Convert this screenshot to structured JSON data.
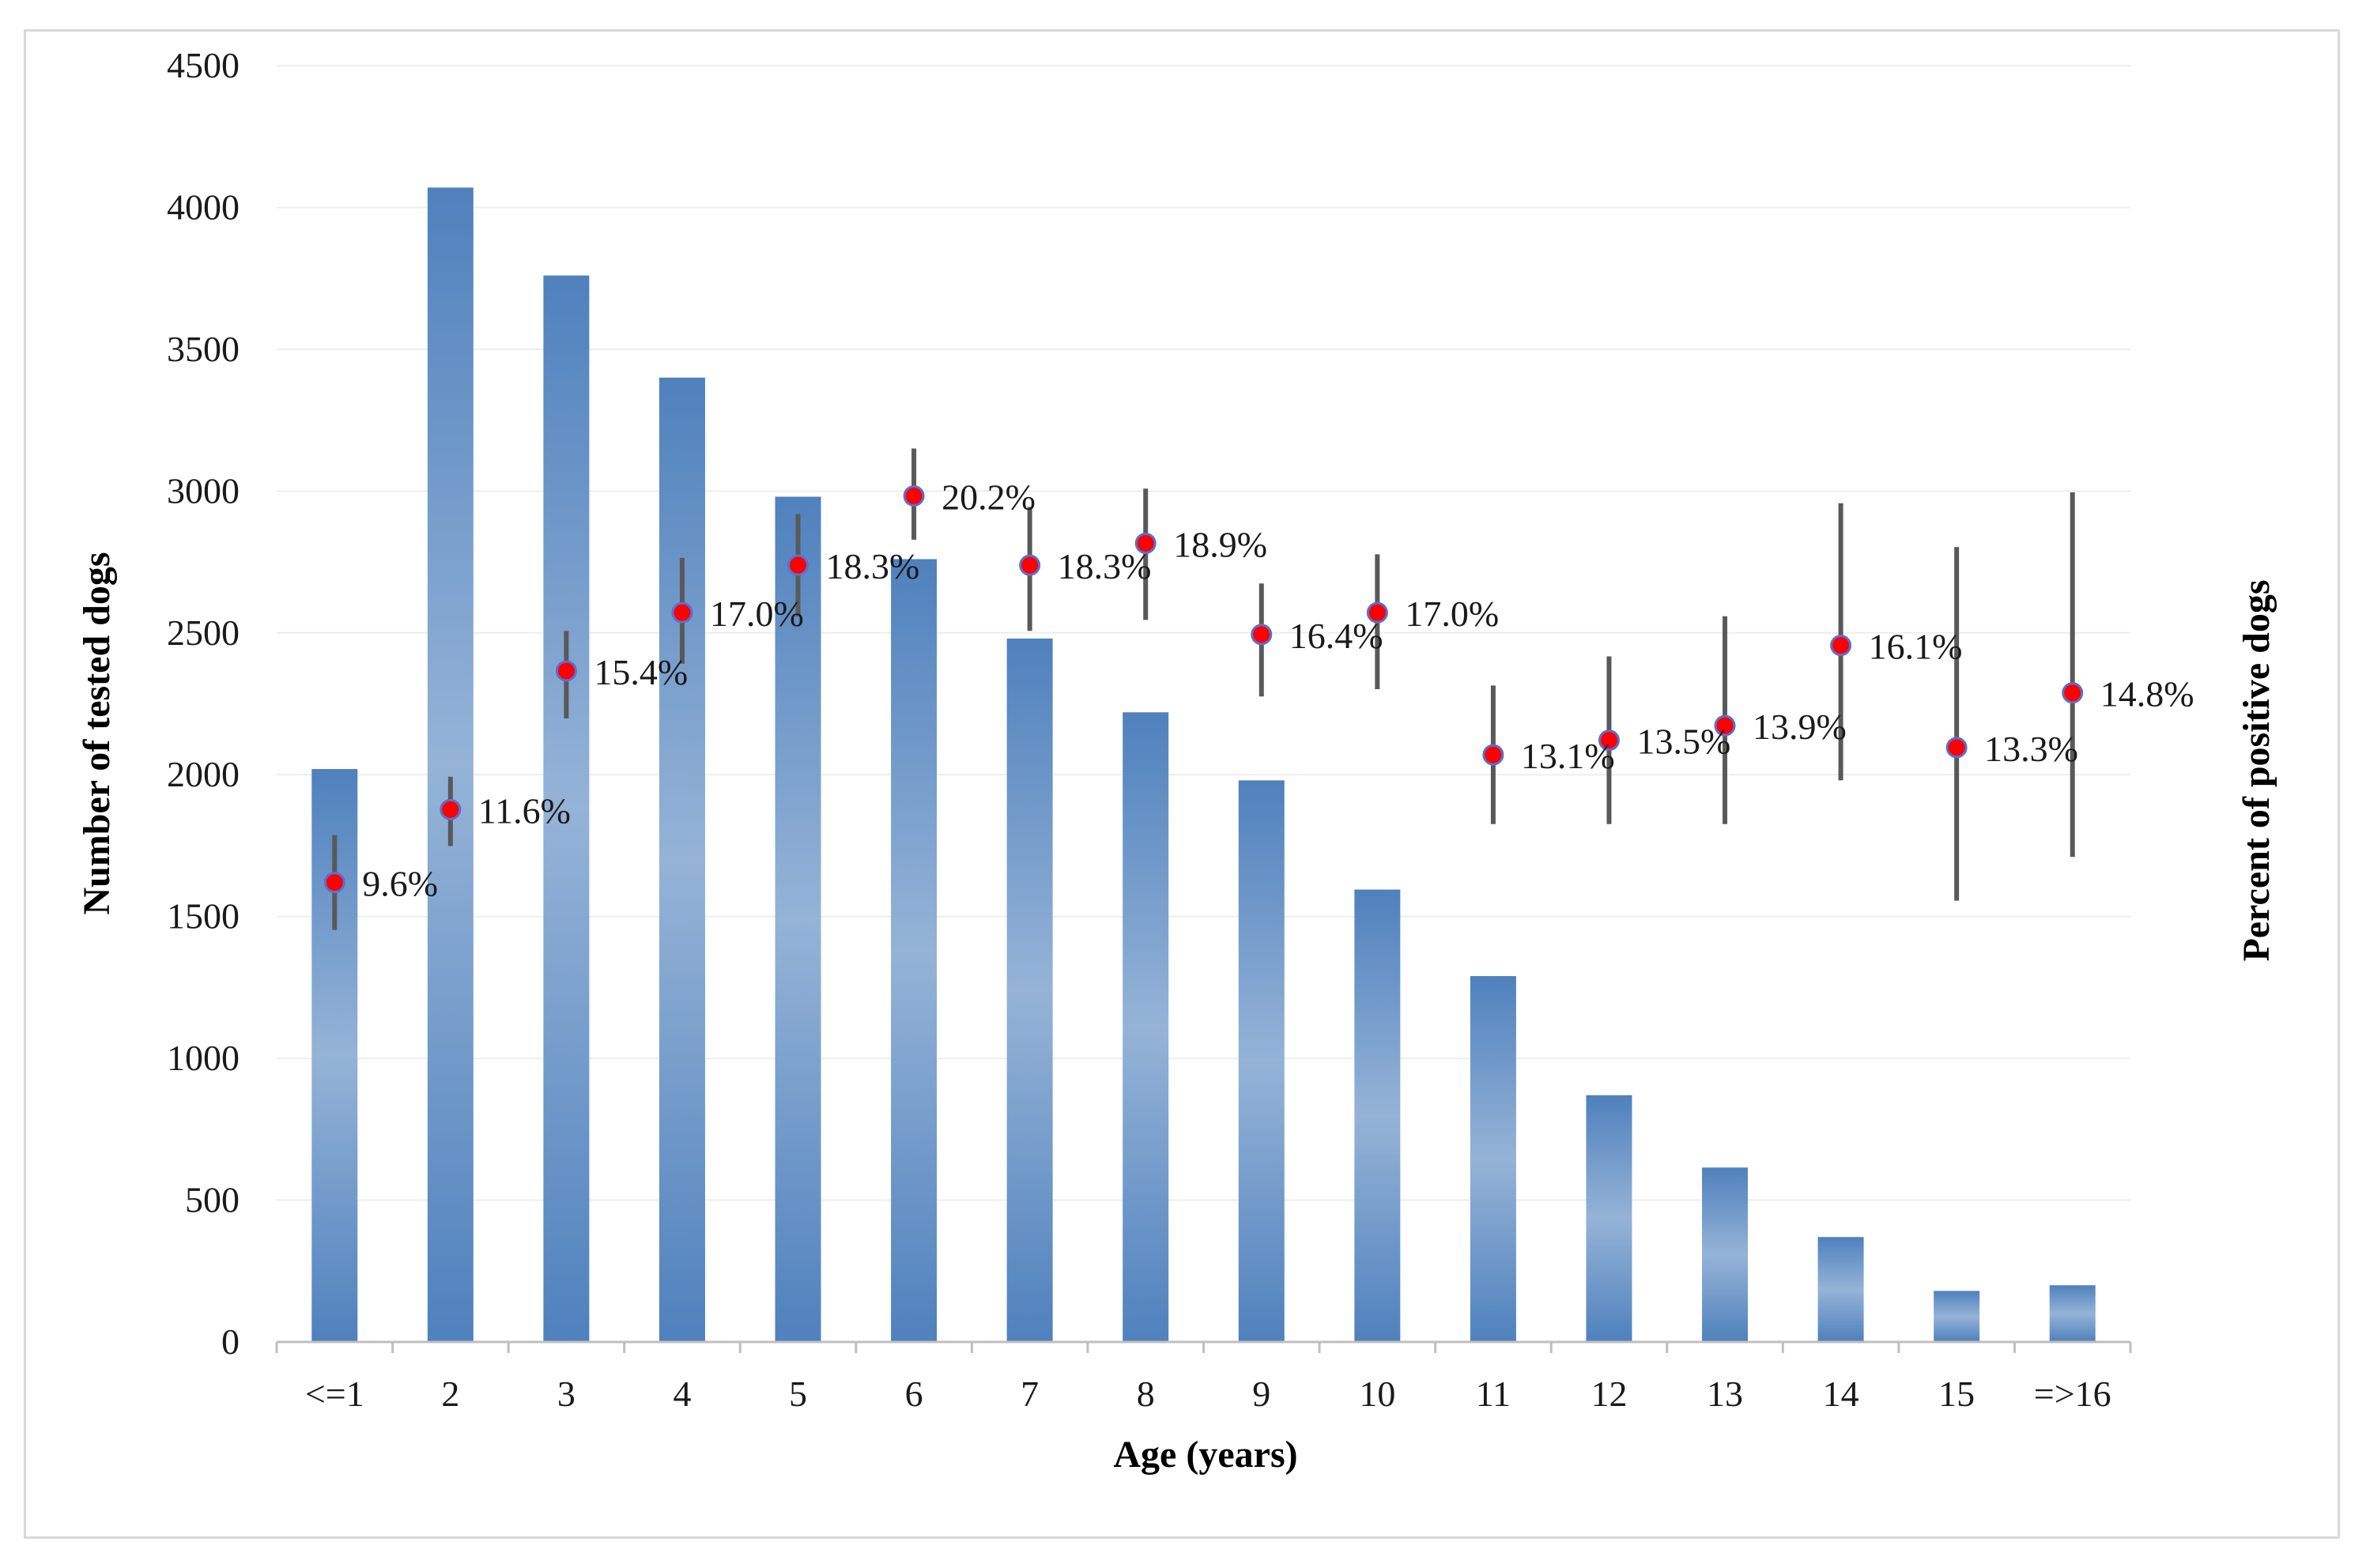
{
  "chart_data": {
    "type": "bar",
    "title": "",
    "xlabel": "Age (years)",
    "ylabel": "Number of tested dogs",
    "y2label": "Percent of positive dogs",
    "ylim": [
      0,
      4500
    ],
    "yticks": [
      "0",
      "500",
      "1000",
      "1500",
      "2000",
      "2500",
      "3000",
      "3500",
      "4000",
      "4500"
    ],
    "grid": true,
    "categories": [
      "<=1",
      "2",
      "3",
      "4",
      "5",
      "6",
      "7",
      "8",
      "9",
      "10",
      "11",
      "12",
      "13",
      "14",
      "15",
      "=>16"
    ],
    "series": [
      {
        "name": "Number of tested dogs",
        "type": "bar",
        "axis": "left",
        "values": [
          2020,
          4070,
          3760,
          3400,
          2980,
          2760,
          2480,
          2220,
          1980,
          1595,
          1290,
          870,
          615,
          370,
          180,
          200
        ]
      },
      {
        "name": "Percent of positive dogs",
        "type": "scatter",
        "axis": "right",
        "values": [
          9.6,
          11.6,
          15.4,
          17.0,
          18.3,
          20.2,
          18.3,
          18.9,
          16.4,
          17.0,
          13.1,
          13.5,
          13.9,
          16.1,
          13.3,
          14.8
        ],
        "labels": [
          "9.6%",
          "11.6%",
          "15.4%",
          "17.0%",
          "18.3%",
          "20.2%",
          "18.3%",
          "18.9%",
          "16.4%",
          "17.0%",
          "13.1%",
          "13.5%",
          "13.9%",
          "16.1%",
          "13.3%",
          "14.8%"
        ],
        "error_low": [
          8.3,
          10.6,
          14.1,
          15.6,
          16.9,
          19.0,
          16.5,
          16.8,
          14.7,
          14.9,
          11.2,
          11.2,
          11.2,
          12.4,
          9.1,
          10.3
        ],
        "error_high": [
          10.9,
          12.5,
          16.5,
          18.5,
          19.7,
          21.5,
          19.9,
          20.4,
          17.8,
          18.6,
          15.0,
          15.8,
          16.9,
          20.0,
          18.8,
          20.3
        ]
      }
    ],
    "colors": {
      "bar": "#4f81bd",
      "bar_light": "#95b3d7",
      "point": "#ff0000",
      "point_edge": "#5a6fd0",
      "error": "#595959",
      "grid": "#eeeeee",
      "axis": "#bfbfbf"
    }
  }
}
